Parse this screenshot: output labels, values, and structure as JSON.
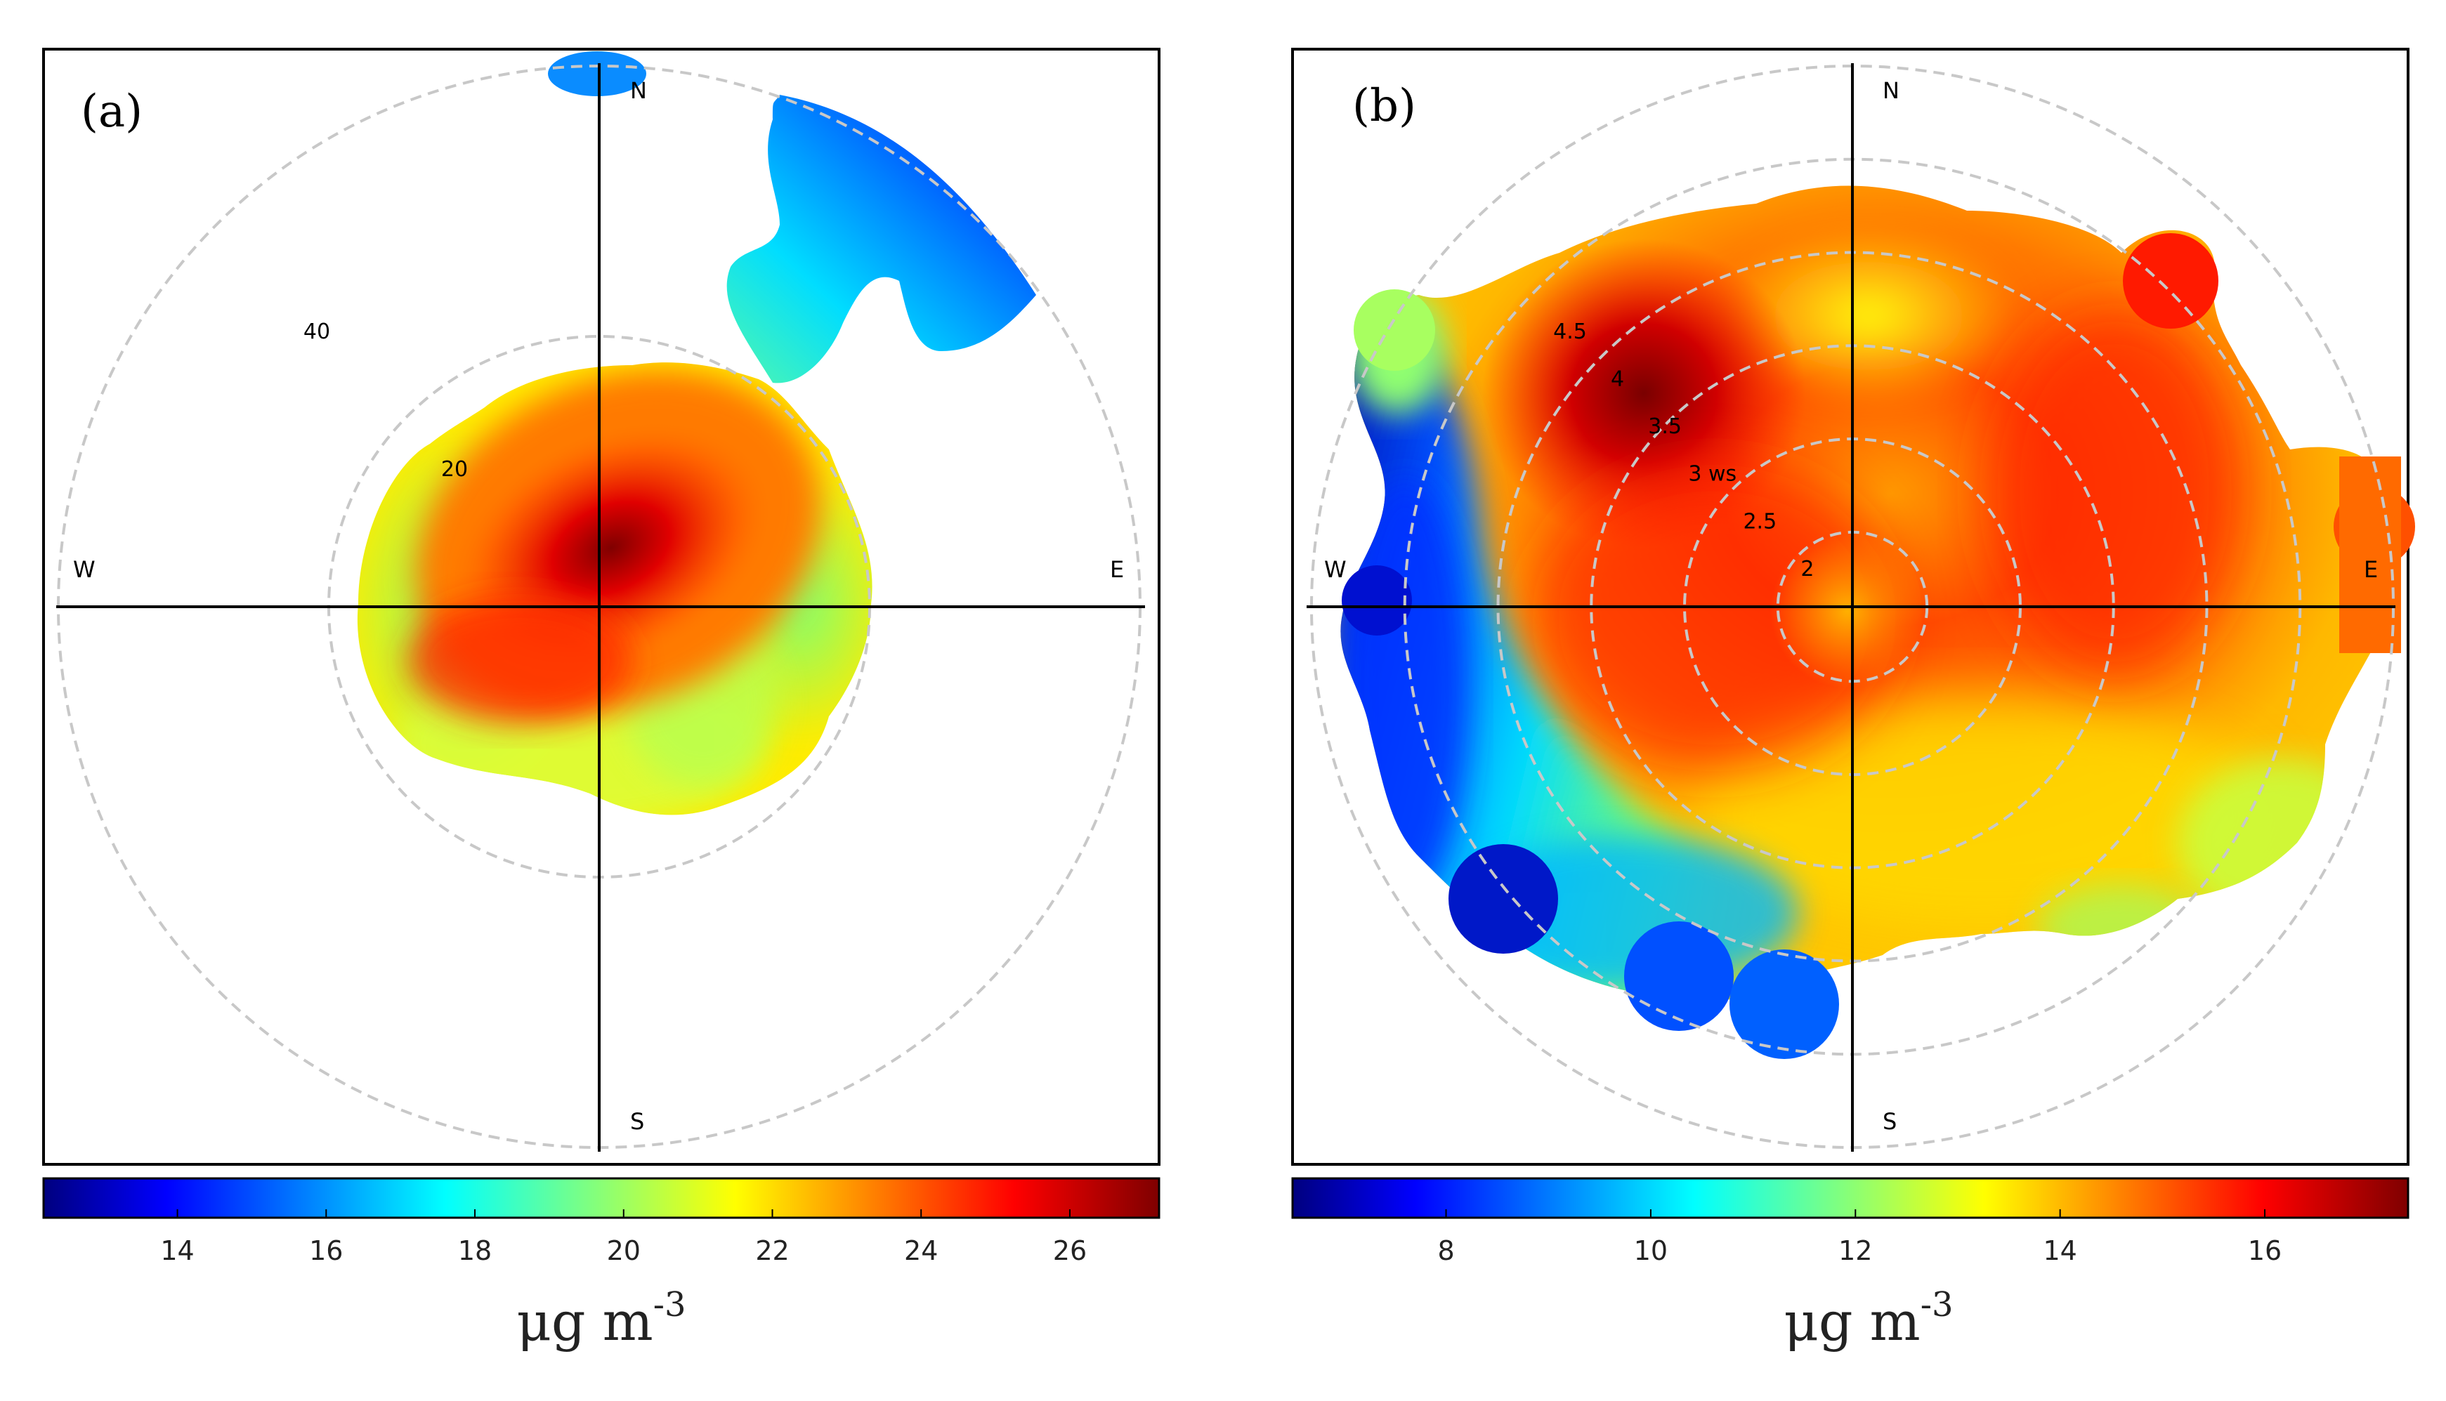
{
  "chart_data": [
    {
      "type": "polar_heatmap",
      "panel_label": "(a)",
      "radial_variable": "",
      "radial_ticks": [
        {
          "value": 20,
          "label": "20"
        },
        {
          "value": 40,
          "label": "40"
        }
      ],
      "radial_max": 40,
      "directions": {
        "N": "N",
        "E": "E",
        "S": "S",
        "W": "W"
      },
      "colorbar": {
        "min": 12.2,
        "max": 27.2,
        "ticks": [
          14,
          16,
          18,
          20,
          22,
          24,
          26
        ],
        "tick_labels": [
          "14",
          "16",
          "18",
          "20",
          "22",
          "24",
          "26"
        ],
        "unit_main": "μg m",
        "unit_sup": "-3"
      },
      "colormap": "jet",
      "value_range_shown": [
        12.5,
        27
      ],
      "hotspot": {
        "direction_deg": 20,
        "radial_value": 5,
        "value": 27
      }
    },
    {
      "type": "polar_heatmap",
      "panel_label": "(b)",
      "radial_variable": "ws",
      "radial_ticks": [
        {
          "value": 2,
          "label": "2"
        },
        {
          "value": 2.5,
          "label": "2.5"
        },
        {
          "value": 3,
          "label": "3 ws"
        },
        {
          "value": 3.5,
          "label": "3.5"
        },
        {
          "value": 4,
          "label": "4"
        },
        {
          "value": 4.5,
          "label": "4.5"
        }
      ],
      "radial_min": 1.6,
      "radial_max": 4.5,
      "directions": {
        "N": "N",
        "E": "E",
        "S": "S",
        "W": "W"
      },
      "colorbar": {
        "min": 6.5,
        "max": 17.4,
        "ticks": [
          8,
          10,
          12,
          14,
          16
        ],
        "tick_labels": [
          "8",
          "10",
          "12",
          "14",
          "16"
        ],
        "unit_main": "μg m",
        "unit_sup": "-3"
      },
      "colormap": "jet",
      "value_range_shown": [
        6.8,
        17.2
      ],
      "hotspot": {
        "direction_deg": 315,
        "radial_value": 3.8,
        "value": 17.2
      }
    }
  ]
}
